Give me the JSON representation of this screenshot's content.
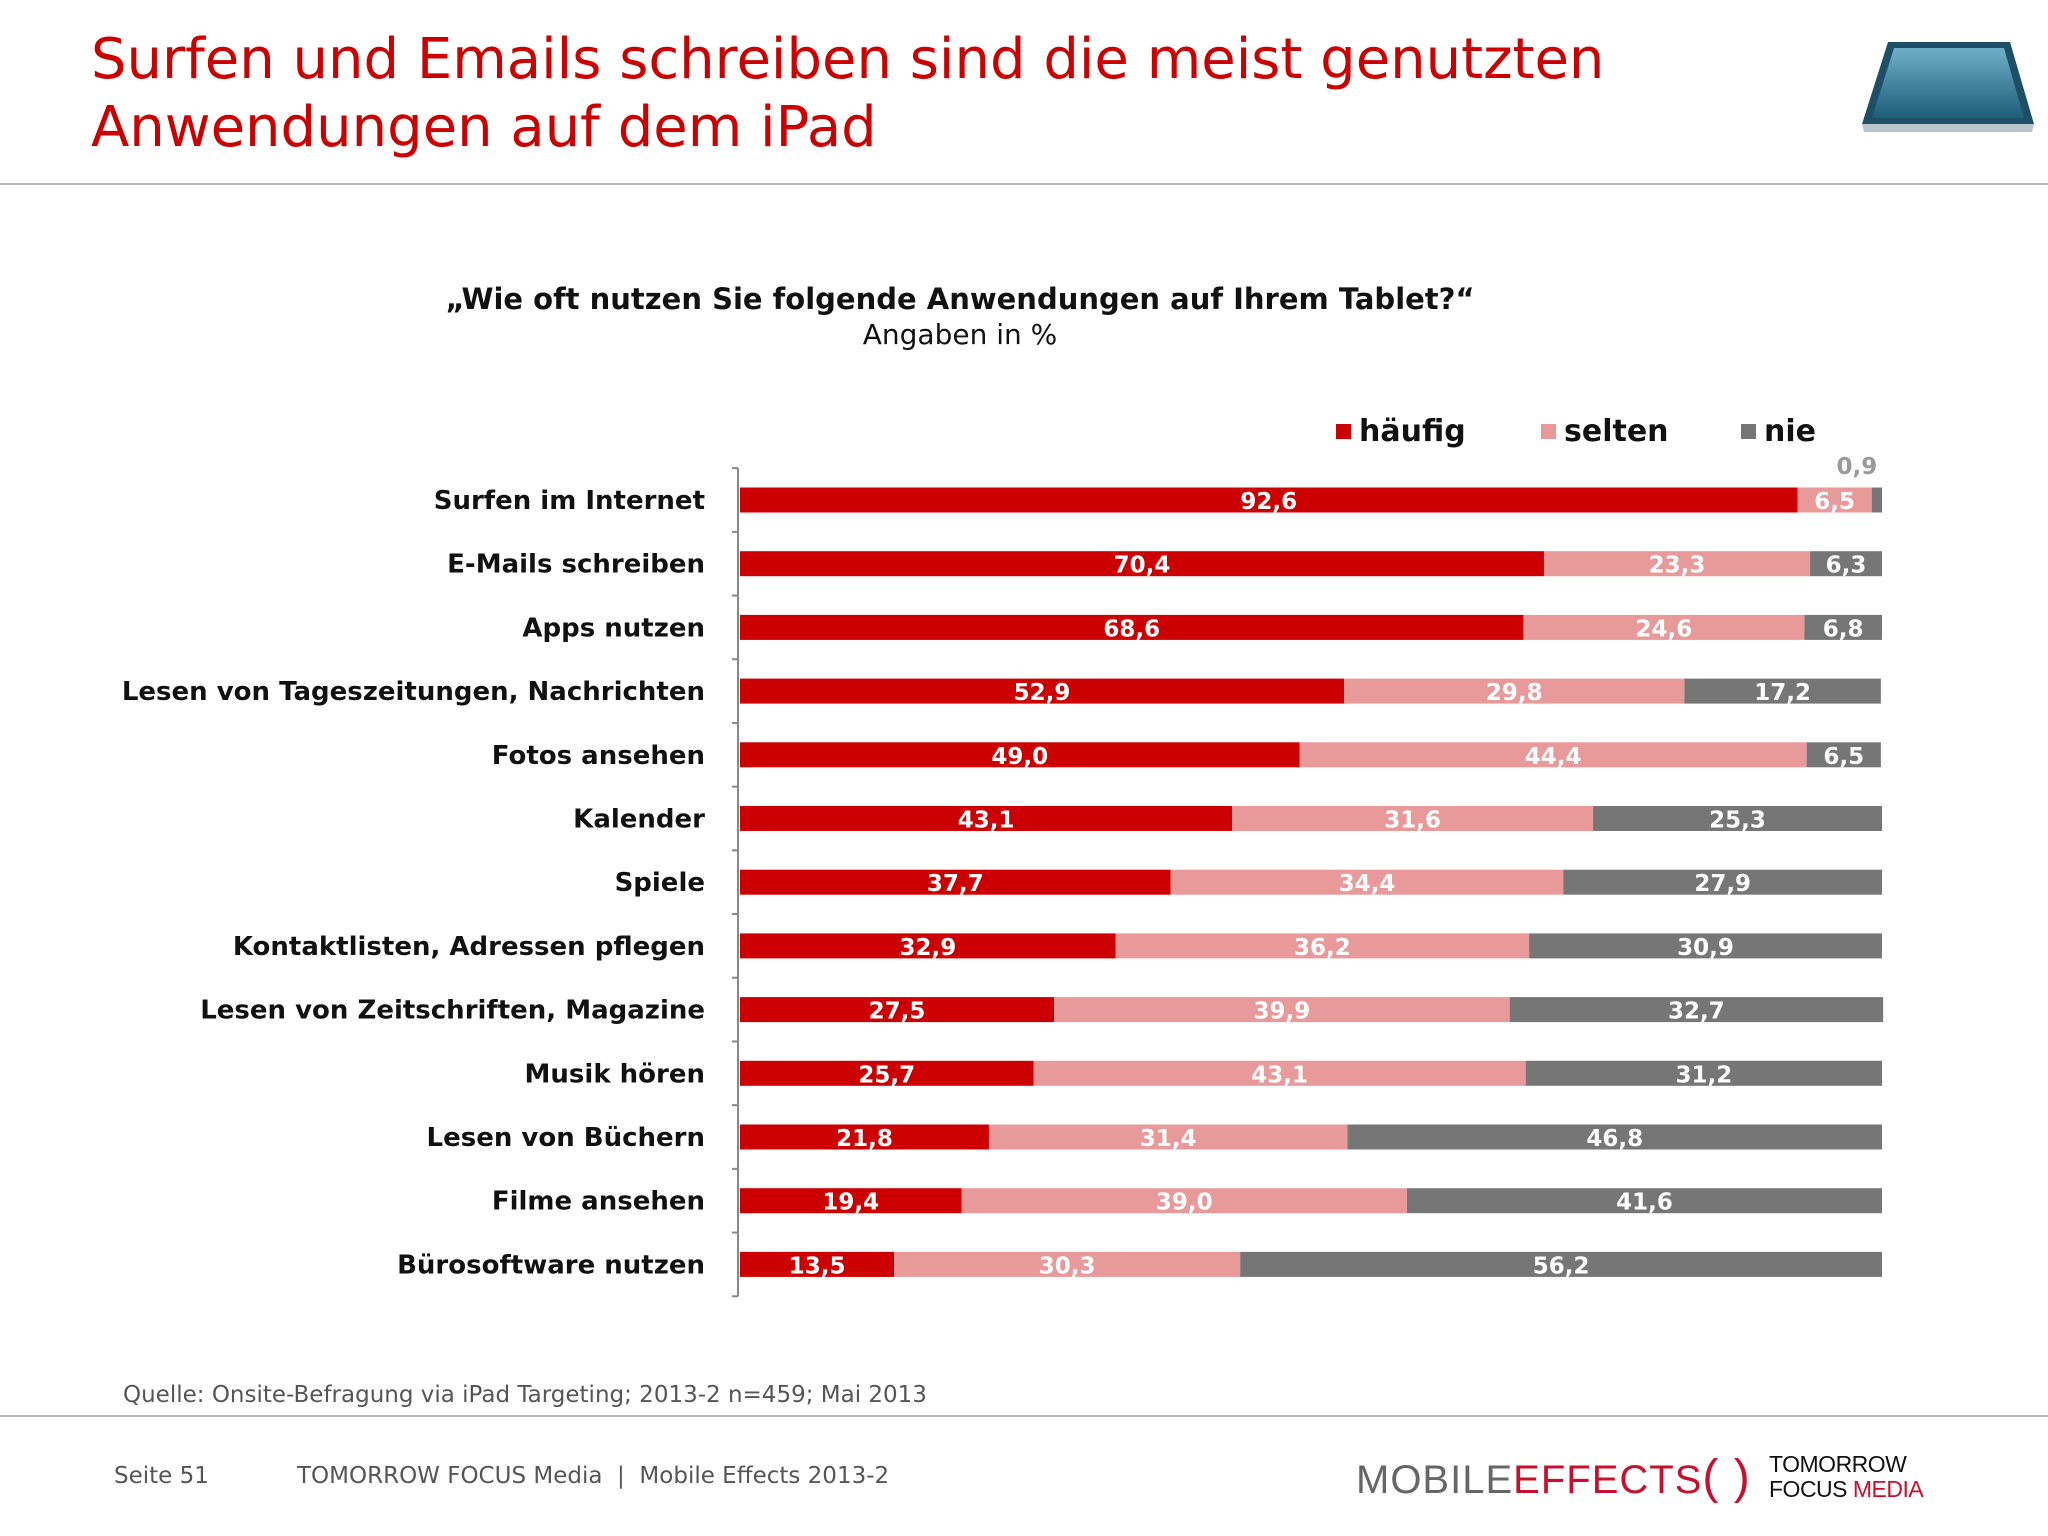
{
  "header": {
    "title_line1": "Surfen und Emails schreiben sind die meist genutzten",
    "title_line2": "Anwendungen auf dem iPad",
    "icon": "ipad-icon"
  },
  "chart_data": {
    "type": "bar",
    "orientation": "horizontal",
    "stacked": true,
    "title": "„Wie oft nutzen Sie folgende Anwendungen auf Ihrem Tablet?“",
    "subtitle": "Angaben in %",
    "legend_placement": "top-right",
    "categories": [
      "Surfen im Internet",
      "E-Mails schreiben",
      "Apps nutzen",
      "Lesen von Tageszeitungen, Nachrichten",
      "Fotos ansehen",
      "Kalender",
      "Spiele",
      "Kontaktlisten, Adressen pflegen",
      "Lesen von Zeitschriften, Magazine",
      "Musik hören",
      "Lesen von Büchern",
      "Filme ansehen",
      "Bürosoftware nutzen"
    ],
    "series": [
      {
        "name": "häufig",
        "color": "#cc0000",
        "values": [
          92.6,
          70.4,
          68.6,
          52.9,
          49.0,
          43.1,
          37.7,
          32.9,
          27.5,
          25.7,
          21.8,
          19.4,
          13.5
        ],
        "labels": [
          "92,6",
          "70,4",
          "68,6",
          "52,9",
          "49,0",
          "43,1",
          "37,7",
          "32,9",
          "27,5",
          "25,7",
          "21,8",
          "19,4",
          "13,5"
        ]
      },
      {
        "name": "selten",
        "color": "#e89a9a",
        "values": [
          6.5,
          23.3,
          24.6,
          29.8,
          44.4,
          31.6,
          34.4,
          36.2,
          39.9,
          43.1,
          31.4,
          39.0,
          30.3
        ],
        "labels": [
          "6,5",
          "23,3",
          "24,6",
          "29,8",
          "44,4",
          "31,6",
          "34,4",
          "36,2",
          "39,9",
          "43,1",
          "31,4",
          "39,0",
          "30,3"
        ]
      },
      {
        "name": "nie",
        "color": "#767676",
        "values": [
          0.9,
          6.3,
          6.8,
          17.2,
          6.5,
          25.3,
          27.9,
          30.9,
          32.7,
          31.2,
          46.8,
          41.6,
          56.2
        ],
        "labels": [
          "0,9",
          "6,3",
          "6,8",
          "17,2",
          "6,5",
          "25,3",
          "27,9",
          "30,9",
          "32,7",
          "31,2",
          "46,8",
          "41,6",
          "56,2"
        ]
      }
    ],
    "xlim": [
      0,
      100
    ],
    "grid": false
  },
  "footer": {
    "source": "Quelle: Onsite-Befragung via iPad Targeting; 2013-2 n=459; Mai 2013",
    "page": "Seite 51",
    "company": "TOMORROW FOCUS Media  |  Mobile Effects 2013-2",
    "logo1_a": "MOBILE",
    "logo1_b": "EFFECTS",
    "logo2_a": "TOMORROW",
    "logo2_b": "FOCUS",
    "logo2_c": "MEDIA"
  }
}
